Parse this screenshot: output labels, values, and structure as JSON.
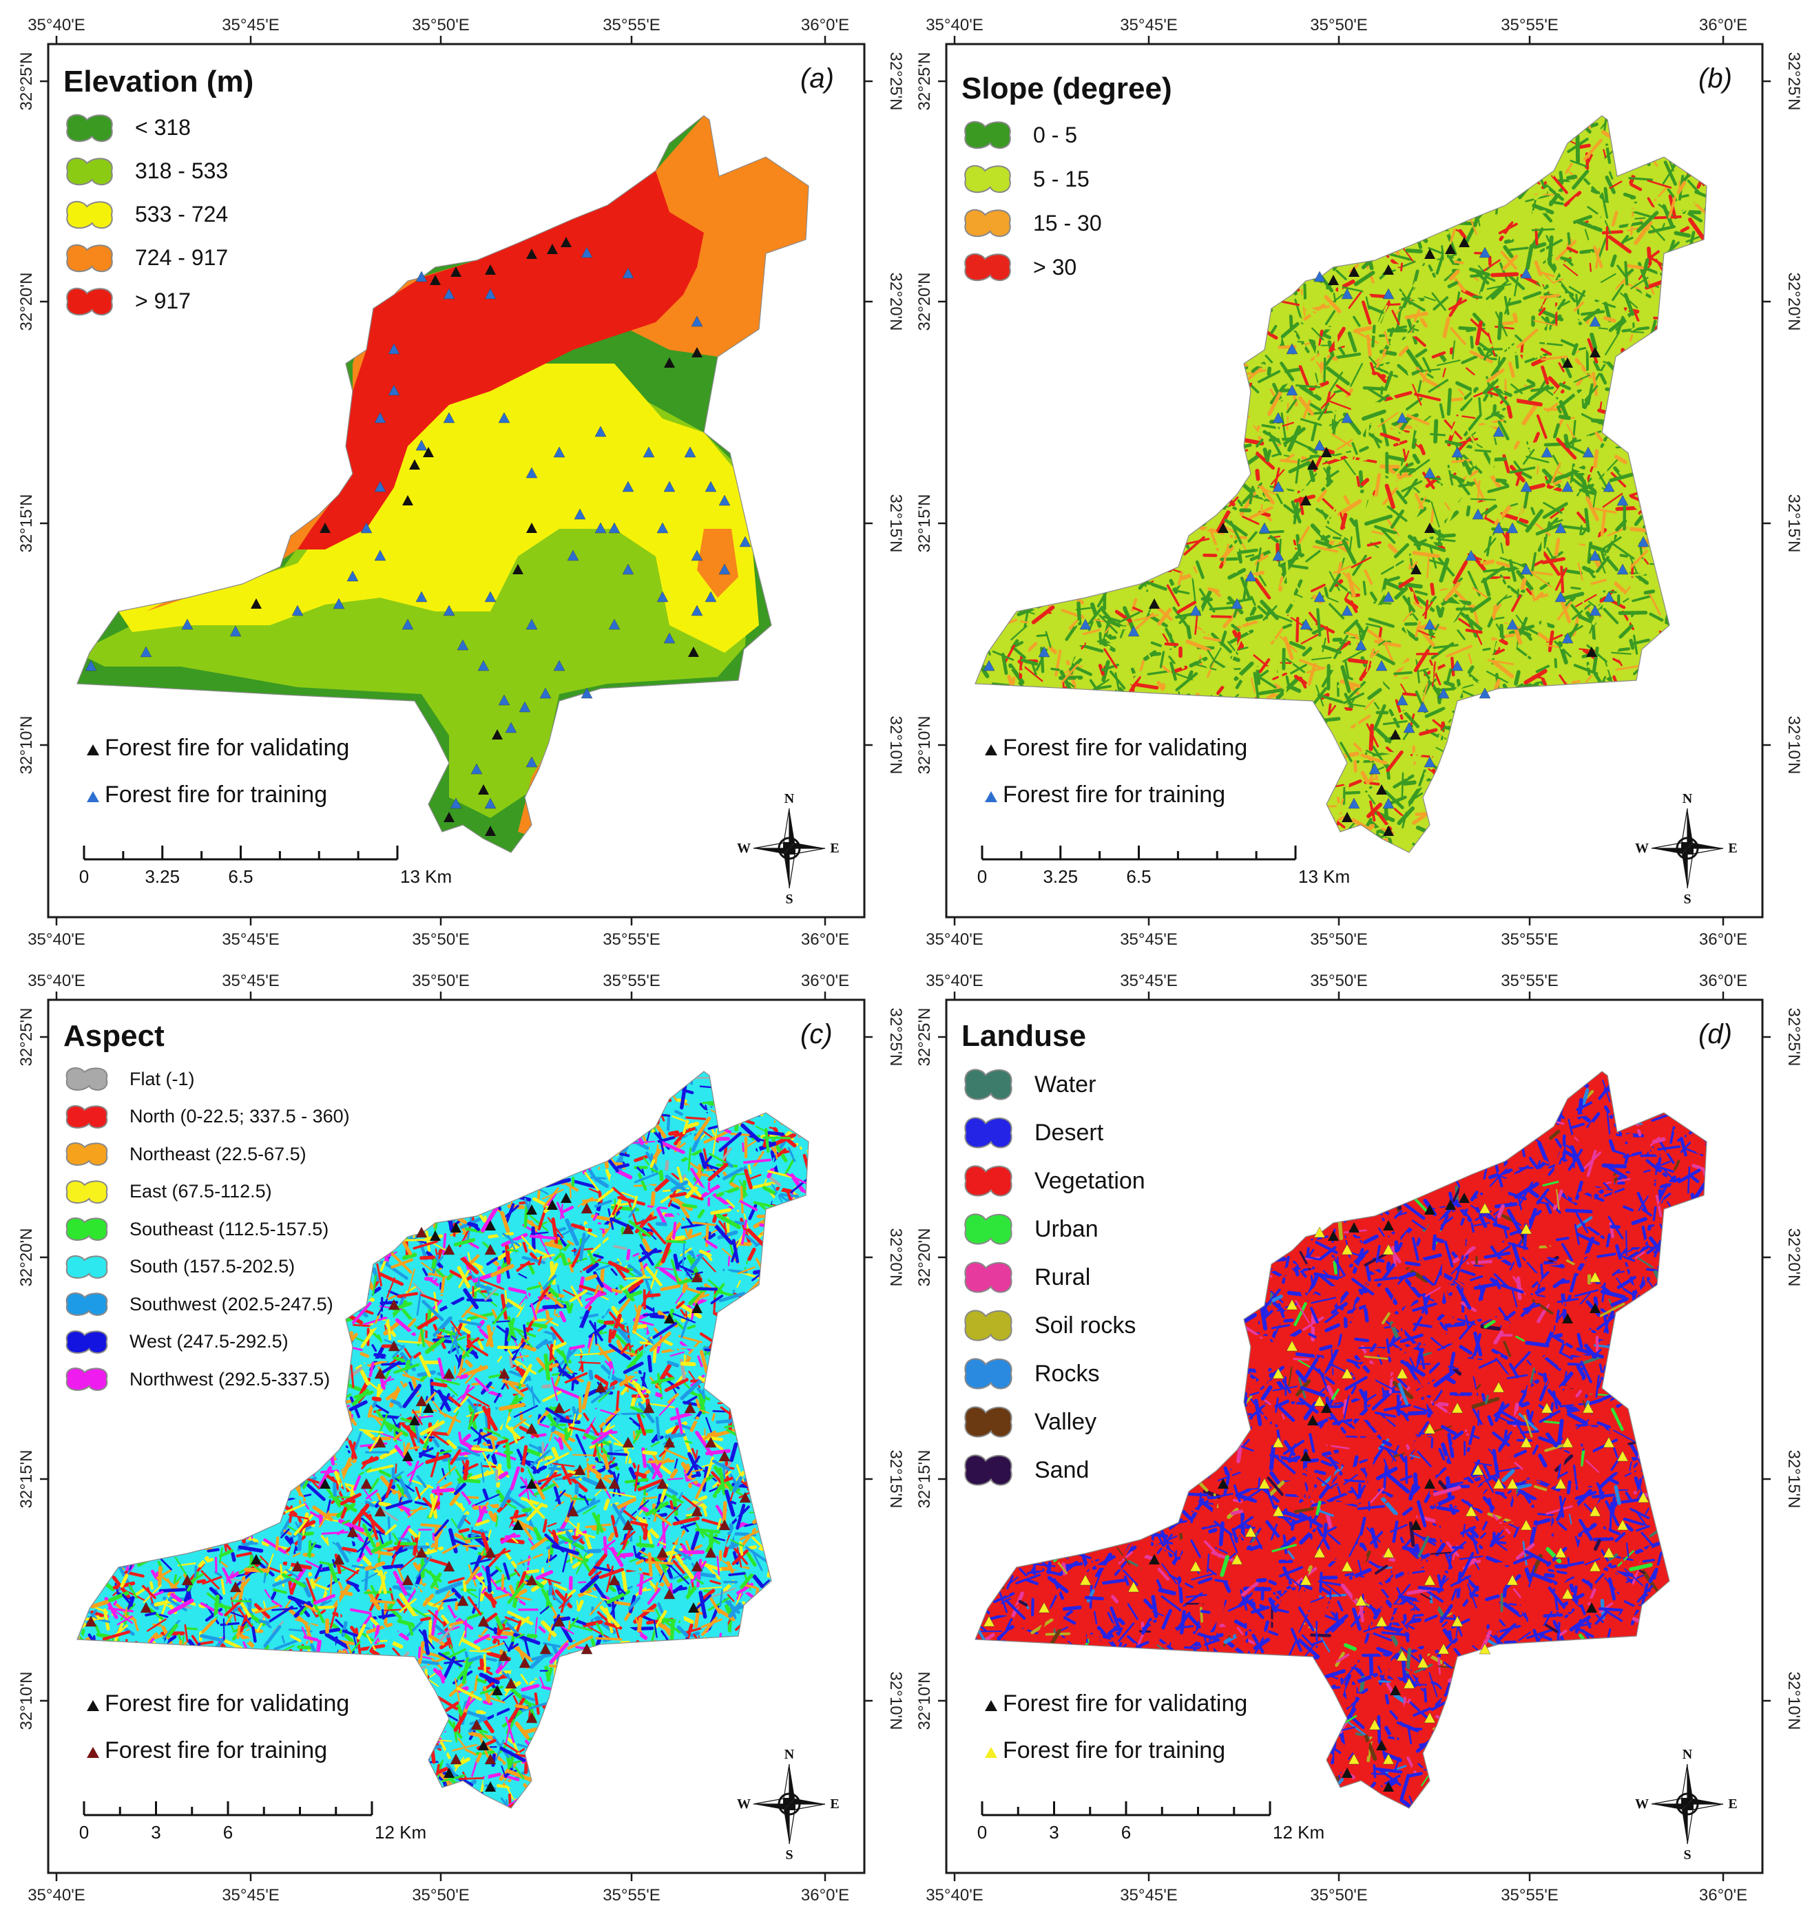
{
  "panels": {
    "a": {
      "tag": "(a)",
      "title": "Elevation (m)",
      "classes": [
        {
          "label": "< 318",
          "color": "#3a9a22"
        },
        {
          "label": "318 - 533",
          "color": "#8ccb14"
        },
        {
          "label": "533 - 724",
          "color": "#f5f20a"
        },
        {
          "label": "724 - 917",
          "color": "#f7861b"
        },
        {
          "label": "> 917",
          "color": "#ea1d12"
        }
      ],
      "fire_validating": "Forest fire for validating",
      "fire_training": "Forest fire for training",
      "training_color": "#2d6fd0",
      "scale": {
        "ticks": [
          "0",
          "3.25",
          "6.5",
          "13 Km"
        ]
      }
    },
    "b": {
      "tag": "(b)",
      "title": "Slope (degree)",
      "classes": [
        {
          "label": "0 - 5",
          "color": "#3a9a22"
        },
        {
          "label": "5 - 15",
          "color": "#bfe126"
        },
        {
          "label": "15 - 30",
          "color": "#f3a22a"
        },
        {
          "label": "> 30",
          "color": "#e8231a"
        }
      ],
      "fire_validating": "Forest fire for validating",
      "fire_training": "Forest fire for training",
      "training_color": "#2d6fd0",
      "scale": {
        "ticks": [
          "0",
          "3.25",
          "6.5",
          "13 Km"
        ]
      }
    },
    "c": {
      "tag": "(c)",
      "title": "Aspect",
      "classes": [
        {
          "label": "Flat (-1)",
          "color": "#a9a9a9"
        },
        {
          "label": "North (0-22.5; 337.5 - 360)",
          "color": "#ee1c1c"
        },
        {
          "label": "Northeast (22.5-67.5)",
          "color": "#f7a21c"
        },
        {
          "label": "East (67.5-112.5)",
          "color": "#f7f21c"
        },
        {
          "label": "Southeast (112.5-157.5)",
          "color": "#2ee62e"
        },
        {
          "label": "South (157.5-202.5)",
          "color": "#2de8ee"
        },
        {
          "label": "Southwest (202.5-247.5)",
          "color": "#1e9be6"
        },
        {
          "label": "West (247.5-292.5)",
          "color": "#1414e0"
        },
        {
          "label": "Northwest (292.5-337.5)",
          "color": "#ee1cee"
        }
      ],
      "fire_validating": "Forest fire for validating",
      "fire_training": "Forest fire for training",
      "training_color": "#7a1414",
      "scale": {
        "ticks": [
          "0",
          "3",
          "6",
          "12 Km"
        ]
      }
    },
    "d": {
      "tag": "(d)",
      "title": "Landuse",
      "classes": [
        {
          "label": "Water",
          "color": "#3d7c6b"
        },
        {
          "label": "Desert",
          "color": "#2424e6"
        },
        {
          "label": "Vegetation",
          "color": "#ec1c1c"
        },
        {
          "label": "Urban",
          "color": "#2ee63a"
        },
        {
          "label": "Rural",
          "color": "#e63a9e"
        },
        {
          "label": "Soil rocks",
          "color": "#b7b322"
        },
        {
          "label": "Rocks",
          "color": "#2a8ae0"
        },
        {
          "label": "Valley",
          "color": "#6b3a12"
        },
        {
          "label": "Sand",
          "color": "#2e0f4a"
        }
      ],
      "fire_validating": "Forest fire for validating",
      "fire_training": "Forest fire for training",
      "training_color": "#f4ee22",
      "scale": {
        "ticks": [
          "0",
          "3",
          "6",
          "12 Km"
        ]
      }
    }
  },
  "lon_labels": [
    "35°40'E",
    "35°45'E",
    "35°50'E",
    "35°55'E",
    "36°0'E"
  ],
  "lat_labels": [
    "32°25'N",
    "32°20'N",
    "32°15'N",
    "32°10'N"
  ],
  "compass": {
    "n": "N",
    "s": "S",
    "e": "E",
    "w": "W"
  },
  "validating_color": "#111111"
}
